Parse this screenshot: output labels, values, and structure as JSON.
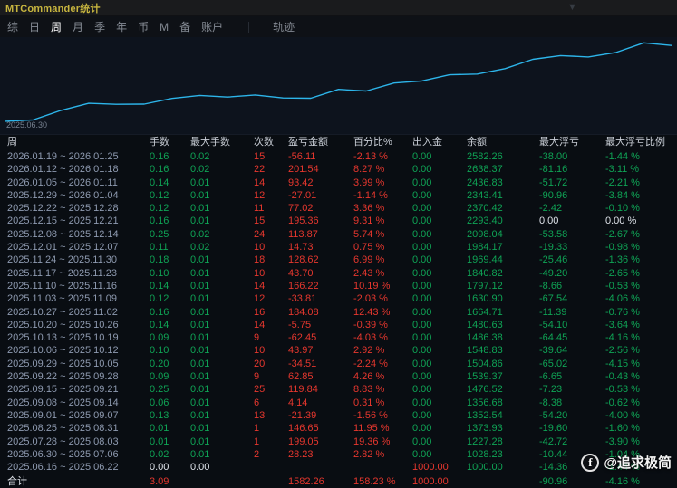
{
  "window": {
    "title": "MTCommander统计"
  },
  "titlebar": {
    "dropdown_icon": "▼"
  },
  "tabs": [
    {
      "label": "综",
      "active": false
    },
    {
      "label": "日",
      "active": false
    },
    {
      "label": "周",
      "active": true
    },
    {
      "label": "月",
      "active": false
    },
    {
      "label": "季",
      "active": false
    },
    {
      "label": "年",
      "active": false
    },
    {
      "label": "币",
      "active": false
    },
    {
      "label": "M",
      "active": false
    },
    {
      "label": "备",
      "active": false
    },
    {
      "label": "账户",
      "active": false
    },
    {
      "label": "轨迹",
      "active": false,
      "separated": true
    }
  ],
  "chart": {
    "start_label": "2025.06.30"
  },
  "chart_data": {
    "type": "line",
    "title": "",
    "xlabel": "",
    "ylabel": "余额",
    "x": [
      "2025.06.16",
      "2025.06.30",
      "2025.07.28",
      "2025.08.25",
      "2025.09.01",
      "2025.09.08",
      "2025.09.15",
      "2025.09.22",
      "2025.09.29",
      "2025.10.06",
      "2025.10.13",
      "2025.10.20",
      "2025.10.27",
      "2025.11.03",
      "2025.11.10",
      "2025.11.17",
      "2025.11.24",
      "2025.12.01",
      "2025.12.08",
      "2025.12.15",
      "2025.12.22",
      "2025.12.29",
      "2026.01.05",
      "2026.01.12",
      "2026.01.19"
    ],
    "series": [
      {
        "name": "余额",
        "values": [
          1000.0,
          1028.23,
          1227.28,
          1373.93,
          1352.54,
          1356.68,
          1476.52,
          1539.37,
          1504.86,
          1548.83,
          1486.38,
          1480.63,
          1664.71,
          1630.9,
          1797.12,
          1840.82,
          1969.44,
          1984.17,
          2098.04,
          2293.4,
          2370.42,
          2343.41,
          2436.83,
          2638.37,
          2582.26
        ]
      }
    ],
    "ylim": [
      960,
      2700
    ],
    "grid": false,
    "legend": "none",
    "line_color": "#2db5ea"
  },
  "table": {
    "headers": [
      "周",
      "手数",
      "最大手数",
      "次数",
      "盈亏金额",
      "百分比%",
      "出入金",
      "余额",
      "最大浮亏",
      "最大浮亏比例"
    ],
    "rows": [
      [
        [
          "2026.01.19 ~ 2026.01.25",
          "date"
        ],
        [
          "0.16",
          "green"
        ],
        [
          "0.02",
          "green"
        ],
        [
          "15",
          "red"
        ],
        [
          "-56.11",
          "red"
        ],
        [
          "-2.13 %",
          "red"
        ],
        [
          "0.00",
          "green"
        ],
        [
          "2582.26",
          "green"
        ],
        [
          "-38.00",
          "green"
        ],
        [
          "-1.44 %",
          "green"
        ]
      ],
      [
        [
          "2026.01.12 ~ 2026.01.18",
          "date"
        ],
        [
          "0.16",
          "green"
        ],
        [
          "0.02",
          "green"
        ],
        [
          "22",
          "red"
        ],
        [
          "201.54",
          "red"
        ],
        [
          "8.27 %",
          "red"
        ],
        [
          "0.00",
          "green"
        ],
        [
          "2638.37",
          "green"
        ],
        [
          "-81.16",
          "green"
        ],
        [
          "-3.11 %",
          "green"
        ]
      ],
      [
        [
          "2026.01.05 ~ 2026.01.11",
          "date"
        ],
        [
          "0.14",
          "green"
        ],
        [
          "0.01",
          "green"
        ],
        [
          "14",
          "red"
        ],
        [
          "93.42",
          "red"
        ],
        [
          "3.99 %",
          "red"
        ],
        [
          "0.00",
          "green"
        ],
        [
          "2436.83",
          "green"
        ],
        [
          "-51.72",
          "green"
        ],
        [
          "-2.21 %",
          "green"
        ]
      ],
      [
        [
          "2025.12.29 ~ 2026.01.04",
          "date"
        ],
        [
          "0.12",
          "green"
        ],
        [
          "0.01",
          "green"
        ],
        [
          "12",
          "red"
        ],
        [
          "-27.01",
          "red"
        ],
        [
          "-1.14 %",
          "red"
        ],
        [
          "0.00",
          "green"
        ],
        [
          "2343.41",
          "green"
        ],
        [
          "-90.96",
          "green"
        ],
        [
          "-3.84 %",
          "green"
        ]
      ],
      [
        [
          "2025.12.22 ~ 2025.12.28",
          "date"
        ],
        [
          "0.12",
          "green"
        ],
        [
          "0.01",
          "green"
        ],
        [
          "11",
          "red"
        ],
        [
          "77.02",
          "red"
        ],
        [
          "3.36 %",
          "red"
        ],
        [
          "0.00",
          "green"
        ],
        [
          "2370.42",
          "green"
        ],
        [
          "-2.42",
          "green"
        ],
        [
          "-0.10 %",
          "green"
        ]
      ],
      [
        [
          "2025.12.15 ~ 2025.12.21",
          "date"
        ],
        [
          "0.16",
          "green"
        ],
        [
          "0.01",
          "green"
        ],
        [
          "15",
          "red"
        ],
        [
          "195.36",
          "red"
        ],
        [
          "9.31 %",
          "red"
        ],
        [
          "0.00",
          "green"
        ],
        [
          "2293.40",
          "green"
        ],
        [
          "0.00",
          "white"
        ],
        [
          "0.00 %",
          "white"
        ]
      ],
      [
        [
          "2025.12.08 ~ 2025.12.14",
          "date"
        ],
        [
          "0.25",
          "green"
        ],
        [
          "0.02",
          "green"
        ],
        [
          "24",
          "red"
        ],
        [
          "113.87",
          "red"
        ],
        [
          "5.74 %",
          "red"
        ],
        [
          "0.00",
          "green"
        ],
        [
          "2098.04",
          "green"
        ],
        [
          "-53.58",
          "green"
        ],
        [
          "-2.67 %",
          "green"
        ]
      ],
      [
        [
          "2025.12.01 ~ 2025.12.07",
          "date"
        ],
        [
          "0.11",
          "green"
        ],
        [
          "0.02",
          "green"
        ],
        [
          "10",
          "red"
        ],
        [
          "14.73",
          "red"
        ],
        [
          "0.75 %",
          "red"
        ],
        [
          "0.00",
          "green"
        ],
        [
          "1984.17",
          "green"
        ],
        [
          "-19.33",
          "green"
        ],
        [
          "-0.98 %",
          "green"
        ]
      ],
      [
        [
          "2025.11.24 ~ 2025.11.30",
          "date"
        ],
        [
          "0.18",
          "green"
        ],
        [
          "0.01",
          "green"
        ],
        [
          "18",
          "red"
        ],
        [
          "128.62",
          "red"
        ],
        [
          "6.99 %",
          "red"
        ],
        [
          "0.00",
          "green"
        ],
        [
          "1969.44",
          "green"
        ],
        [
          "-25.46",
          "green"
        ],
        [
          "-1.36 %",
          "green"
        ]
      ],
      [
        [
          "2025.11.17 ~ 2025.11.23",
          "date"
        ],
        [
          "0.10",
          "green"
        ],
        [
          "0.01",
          "green"
        ],
        [
          "10",
          "red"
        ],
        [
          "43.70",
          "red"
        ],
        [
          "2.43 %",
          "red"
        ],
        [
          "0.00",
          "green"
        ],
        [
          "1840.82",
          "green"
        ],
        [
          "-49.20",
          "green"
        ],
        [
          "-2.65 %",
          "green"
        ]
      ],
      [
        [
          "2025.11.10 ~ 2025.11.16",
          "date"
        ],
        [
          "0.14",
          "green"
        ],
        [
          "0.01",
          "green"
        ],
        [
          "14",
          "red"
        ],
        [
          "166.22",
          "red"
        ],
        [
          "10.19 %",
          "red"
        ],
        [
          "0.00",
          "green"
        ],
        [
          "1797.12",
          "green"
        ],
        [
          "-8.66",
          "green"
        ],
        [
          "-0.53 %",
          "green"
        ]
      ],
      [
        [
          "2025.11.03 ~ 2025.11.09",
          "date"
        ],
        [
          "0.12",
          "green"
        ],
        [
          "0.01",
          "green"
        ],
        [
          "12",
          "red"
        ],
        [
          "-33.81",
          "red"
        ],
        [
          "-2.03 %",
          "red"
        ],
        [
          "0.00",
          "green"
        ],
        [
          "1630.90",
          "green"
        ],
        [
          "-67.54",
          "green"
        ],
        [
          "-4.06 %",
          "green"
        ]
      ],
      [
        [
          "2025.10.27 ~ 2025.11.02",
          "date"
        ],
        [
          "0.16",
          "green"
        ],
        [
          "0.01",
          "green"
        ],
        [
          "16",
          "red"
        ],
        [
          "184.08",
          "red"
        ],
        [
          "12.43 %",
          "red"
        ],
        [
          "0.00",
          "green"
        ],
        [
          "1664.71",
          "green"
        ],
        [
          "-11.39",
          "green"
        ],
        [
          "-0.76 %",
          "green"
        ]
      ],
      [
        [
          "2025.10.20 ~ 2025.10.26",
          "date"
        ],
        [
          "0.14",
          "green"
        ],
        [
          "0.01",
          "green"
        ],
        [
          "14",
          "red"
        ],
        [
          "-5.75",
          "red"
        ],
        [
          "-0.39 %",
          "red"
        ],
        [
          "0.00",
          "green"
        ],
        [
          "1480.63",
          "green"
        ],
        [
          "-54.10",
          "green"
        ],
        [
          "-3.64 %",
          "green"
        ]
      ],
      [
        [
          "2025.10.13 ~ 2025.10.19",
          "date"
        ],
        [
          "0.09",
          "green"
        ],
        [
          "0.01",
          "green"
        ],
        [
          "9",
          "red"
        ],
        [
          "-62.45",
          "red"
        ],
        [
          "-4.03 %",
          "red"
        ],
        [
          "0.00",
          "green"
        ],
        [
          "1486.38",
          "green"
        ],
        [
          "-64.45",
          "green"
        ],
        [
          "-4.16 %",
          "green"
        ]
      ],
      [
        [
          "2025.10.06 ~ 2025.10.12",
          "date"
        ],
        [
          "0.10",
          "green"
        ],
        [
          "0.01",
          "green"
        ],
        [
          "10",
          "red"
        ],
        [
          "43.97",
          "red"
        ],
        [
          "2.92 %",
          "red"
        ],
        [
          "0.00",
          "green"
        ],
        [
          "1548.83",
          "green"
        ],
        [
          "-39.64",
          "green"
        ],
        [
          "-2.56 %",
          "green"
        ]
      ],
      [
        [
          "2025.09.29 ~ 2025.10.05",
          "date"
        ],
        [
          "0.20",
          "green"
        ],
        [
          "0.01",
          "green"
        ],
        [
          "20",
          "red"
        ],
        [
          "-34.51",
          "red"
        ],
        [
          "-2.24 %",
          "red"
        ],
        [
          "0.00",
          "green"
        ],
        [
          "1504.86",
          "green"
        ],
        [
          "-65.02",
          "green"
        ],
        [
          "-4.15 %",
          "green"
        ]
      ],
      [
        [
          "2025.09.22 ~ 2025.09.28",
          "date"
        ],
        [
          "0.09",
          "green"
        ],
        [
          "0.01",
          "green"
        ],
        [
          "9",
          "red"
        ],
        [
          "62.85",
          "red"
        ],
        [
          "4.26 %",
          "red"
        ],
        [
          "0.00",
          "green"
        ],
        [
          "1539.37",
          "green"
        ],
        [
          "-6.65",
          "green"
        ],
        [
          "-0.43 %",
          "green"
        ]
      ],
      [
        [
          "2025.09.15 ~ 2025.09.21",
          "date"
        ],
        [
          "0.25",
          "green"
        ],
        [
          "0.01",
          "green"
        ],
        [
          "25",
          "red"
        ],
        [
          "119.84",
          "red"
        ],
        [
          "8.83 %",
          "red"
        ],
        [
          "0.00",
          "green"
        ],
        [
          "1476.52",
          "green"
        ],
        [
          "-7.23",
          "green"
        ],
        [
          "-0.53 %",
          "green"
        ]
      ],
      [
        [
          "2025.09.08 ~ 2025.09.14",
          "date"
        ],
        [
          "0.06",
          "green"
        ],
        [
          "0.01",
          "green"
        ],
        [
          "6",
          "red"
        ],
        [
          "4.14",
          "red"
        ],
        [
          "0.31 %",
          "red"
        ],
        [
          "0.00",
          "green"
        ],
        [
          "1356.68",
          "green"
        ],
        [
          "-8.38",
          "green"
        ],
        [
          "-0.62 %",
          "green"
        ]
      ],
      [
        [
          "2025.09.01 ~ 2025.09.07",
          "date"
        ],
        [
          "0.13",
          "green"
        ],
        [
          "0.01",
          "green"
        ],
        [
          "13",
          "red"
        ],
        [
          "-21.39",
          "red"
        ],
        [
          "-1.56 %",
          "red"
        ],
        [
          "0.00",
          "green"
        ],
        [
          "1352.54",
          "green"
        ],
        [
          "-54.20",
          "green"
        ],
        [
          "-4.00 %",
          "green"
        ]
      ],
      [
        [
          "2025.08.25 ~ 2025.08.31",
          "date"
        ],
        [
          "0.01",
          "green"
        ],
        [
          "0.01",
          "green"
        ],
        [
          "1",
          "red"
        ],
        [
          "146.65",
          "red"
        ],
        [
          "11.95 %",
          "red"
        ],
        [
          "0.00",
          "green"
        ],
        [
          "1373.93",
          "green"
        ],
        [
          "-19.60",
          "green"
        ],
        [
          "-1.60 %",
          "green"
        ]
      ],
      [
        [
          "2025.07.28 ~ 2025.08.03",
          "date"
        ],
        [
          "0.01",
          "green"
        ],
        [
          "0.01",
          "green"
        ],
        [
          "1",
          "red"
        ],
        [
          "199.05",
          "red"
        ],
        [
          "19.36 %",
          "red"
        ],
        [
          "0.00",
          "green"
        ],
        [
          "1227.28",
          "green"
        ],
        [
          "-42.72",
          "green"
        ],
        [
          "-3.90 %",
          "green"
        ]
      ],
      [
        [
          "2025.06.30 ~ 2025.07.06",
          "date"
        ],
        [
          "0.02",
          "green"
        ],
        [
          "0.01",
          "green"
        ],
        [
          "2",
          "red"
        ],
        [
          "28.23",
          "red"
        ],
        [
          "2.82 %",
          "red"
        ],
        [
          "0.00",
          "green"
        ],
        [
          "1028.23",
          "green"
        ],
        [
          "-10.44",
          "green"
        ],
        [
          "-1.04 %",
          "green"
        ]
      ],
      [
        [
          "2025.06.16 ~ 2025.06.22",
          "date"
        ],
        [
          "0.00",
          "white"
        ],
        [
          "0.00",
          "white"
        ],
        [
          "",
          "white"
        ],
        [
          "",
          "white"
        ],
        [
          "",
          "white"
        ],
        [
          "1000.00",
          "red"
        ],
        [
          "1000.00",
          "green"
        ],
        [
          "-14.36",
          "green"
        ],
        [
          "-1.44 %",
          "green"
        ]
      ]
    ],
    "total": [
      [
        "合计",
        "white"
      ],
      [
        "3.09",
        "red"
      ],
      [
        "",
        "white"
      ],
      [
        "",
        "white"
      ],
      [
        "1582.26",
        "red"
      ],
      [
        "158.23 %",
        "red"
      ],
      [
        "1000.00",
        "red"
      ],
      [
        "",
        "white"
      ],
      [
        "-90.96",
        "green"
      ],
      [
        "-4.16 %",
        "green"
      ]
    ]
  },
  "watermark": {
    "handle": "@追求极简",
    "icon": "f"
  },
  "colors": {
    "accent": "#2db5ea",
    "green": "#0fa355",
    "red": "#e6372e",
    "date": "#8e9ab0",
    "white": "#dfe3ea",
    "header": "#c9ced6",
    "tab": "#858b94",
    "tab_active": "#ffffff",
    "title": "#c8b63f"
  }
}
